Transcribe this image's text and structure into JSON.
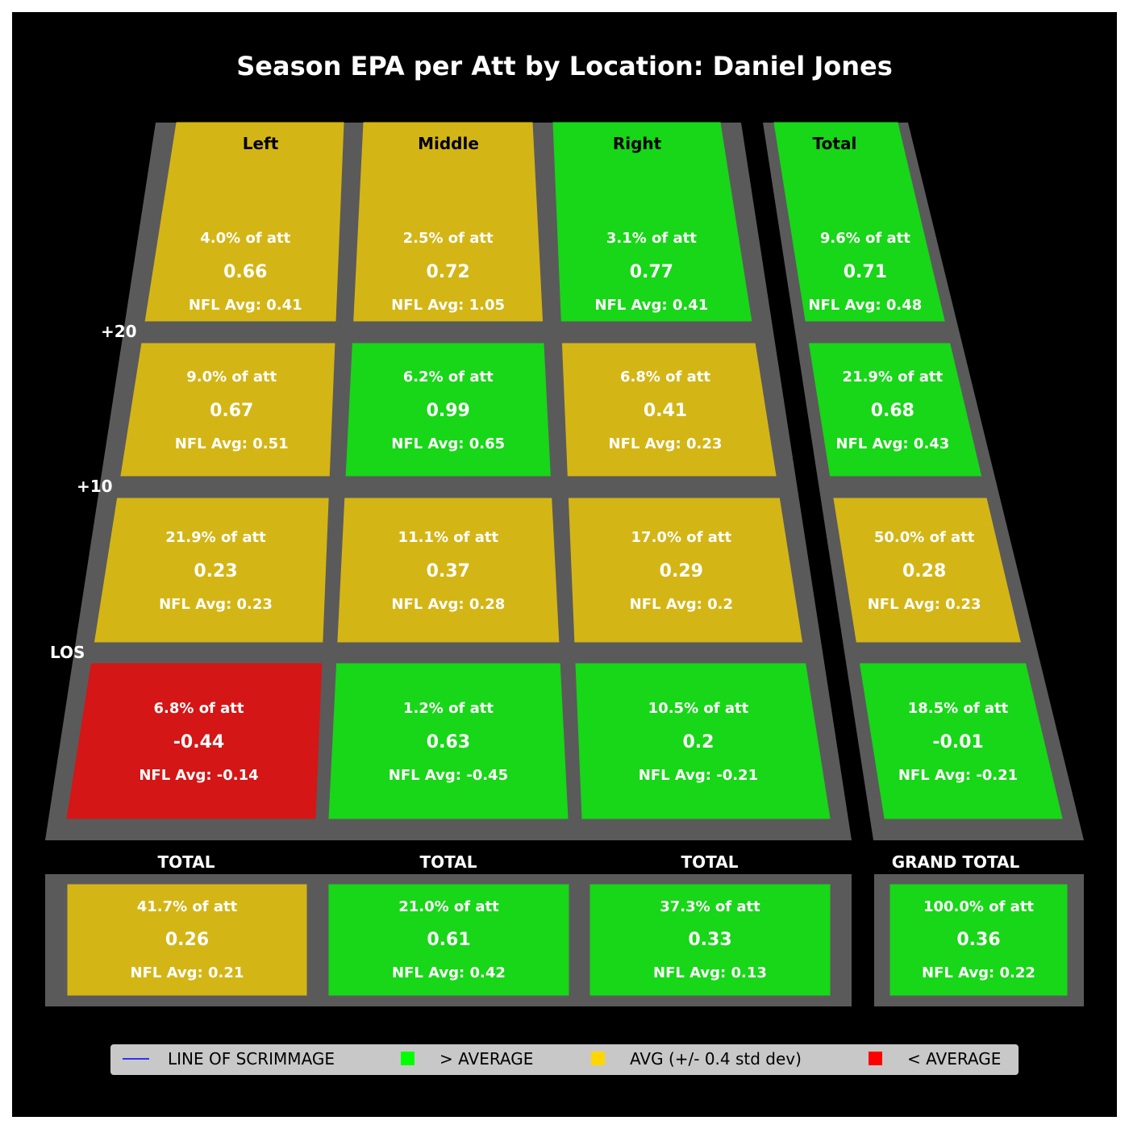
{
  "chart_data": {
    "type": "heatmap",
    "title": "Season EPA per Att by Location: Daniel Jones",
    "columns": [
      "Left",
      "Middle",
      "Right",
      "Total"
    ],
    "row_labels": [
      "+20",
      "+10",
      "LOS"
    ],
    "rows": [
      {
        "cells": [
          {
            "pct": "4.0% of att",
            "epa": "0.66",
            "avg": "NFL Avg: 0.41",
            "rating": "avg"
          },
          {
            "pct": "2.5% of att",
            "epa": "0.72",
            "avg": "NFL Avg: 1.05",
            "rating": "avg"
          },
          {
            "pct": "3.1% of att",
            "epa": "0.77",
            "avg": "NFL Avg: 0.41",
            "rating": "above"
          },
          {
            "pct": "9.6% of att",
            "epa": "0.71",
            "avg": "NFL Avg: 0.48",
            "rating": "above"
          }
        ]
      },
      {
        "cells": [
          {
            "pct": "9.0% of att",
            "epa": "0.67",
            "avg": "NFL Avg: 0.51",
            "rating": "avg"
          },
          {
            "pct": "6.2% of att",
            "epa": "0.99",
            "avg": "NFL Avg: 0.65",
            "rating": "above"
          },
          {
            "pct": "6.8% of att",
            "epa": "0.41",
            "avg": "NFL Avg: 0.23",
            "rating": "avg"
          },
          {
            "pct": "21.9% of att",
            "epa": "0.68",
            "avg": "NFL Avg: 0.43",
            "rating": "above"
          }
        ]
      },
      {
        "cells": [
          {
            "pct": "21.9% of att",
            "epa": "0.23",
            "avg": "NFL Avg: 0.23",
            "rating": "avg"
          },
          {
            "pct": "11.1% of att",
            "epa": "0.37",
            "avg": "NFL Avg: 0.28",
            "rating": "avg"
          },
          {
            "pct": "17.0% of att",
            "epa": "0.29",
            "avg": "NFL Avg: 0.2",
            "rating": "avg"
          },
          {
            "pct": "50.0% of att",
            "epa": "0.28",
            "avg": "NFL Avg: 0.23",
            "rating": "avg"
          }
        ]
      },
      {
        "cells": [
          {
            "pct": "6.8% of att",
            "epa": "-0.44",
            "avg": "NFL Avg: -0.14",
            "rating": "below"
          },
          {
            "pct": "1.2% of att",
            "epa": "0.63",
            "avg": "NFL Avg: -0.45",
            "rating": "above"
          },
          {
            "pct": "10.5% of att",
            "epa": "0.2",
            "avg": "NFL Avg: -0.21",
            "rating": "above"
          },
          {
            "pct": "18.5% of att",
            "epa": "-0.01",
            "avg": "NFL Avg: -0.21",
            "rating": "above"
          }
        ]
      }
    ],
    "totals_labels": [
      "TOTAL",
      "TOTAL",
      "TOTAL",
      "GRAND TOTAL"
    ],
    "totals": [
      {
        "pct": "41.7% of att",
        "epa": "0.26",
        "avg": "NFL Avg: 0.21",
        "rating": "avg"
      },
      {
        "pct": "21.0% of att",
        "epa": "0.61",
        "avg": "NFL Avg: 0.42",
        "rating": "above"
      },
      {
        "pct": "37.3% of att",
        "epa": "0.33",
        "avg": "NFL Avg: 0.13",
        "rating": "above"
      },
      {
        "pct": "100.0% of att",
        "epa": "0.36",
        "avg": "NFL Avg: 0.22",
        "rating": "above"
      }
    ],
    "legend": [
      {
        "label": "LINE OF SCRIMMAGE",
        "marker": "line",
        "color": "#0000ff"
      },
      {
        "label": "> AVERAGE",
        "marker": "square",
        "color": "#00ff00"
      },
      {
        "label": "AVG (+/- 0.4 std dev)",
        "marker": "square",
        "color": "#ffd700"
      },
      {
        "label": "< AVERAGE",
        "marker": "square",
        "color": "#ff0000"
      }
    ],
    "colors": {
      "above": "#18d618",
      "avg": "#d4b516",
      "below": "#d41616",
      "field": "#5a5a5a",
      "background": "#000000"
    }
  }
}
